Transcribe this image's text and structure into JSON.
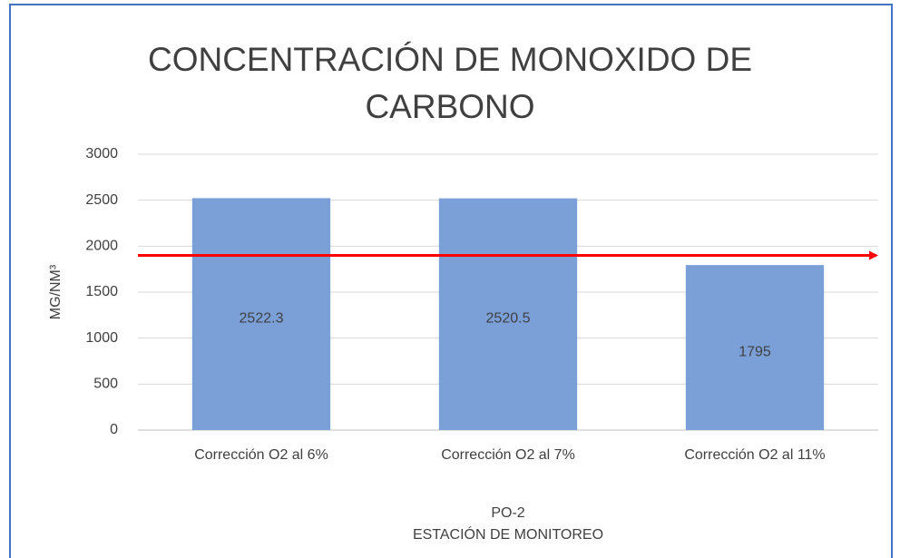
{
  "chart_data": {
    "type": "bar",
    "title": "CONCENTRACIÓN DE MONOXIDO DE CARBONO",
    "categories": [
      "Corrección O2 al 6%",
      "Corrección O2 al 7%",
      "Corrección O2 al 11%"
    ],
    "values": [
      2522.3,
      2520.5,
      1795
    ],
    "color": "#7ba0d8",
    "ylim": [
      0,
      3000
    ],
    "yticks": [
      0,
      500,
      1000,
      1500,
      2000,
      2500,
      3000
    ],
    "grid": true,
    "ylabel": "MG/NM³",
    "xlabel": [
      "PO-2",
      "ESTACIÓN DE MONITOREO"
    ],
    "reference_line": {
      "value": 1900,
      "color": "#ff0000"
    }
  }
}
